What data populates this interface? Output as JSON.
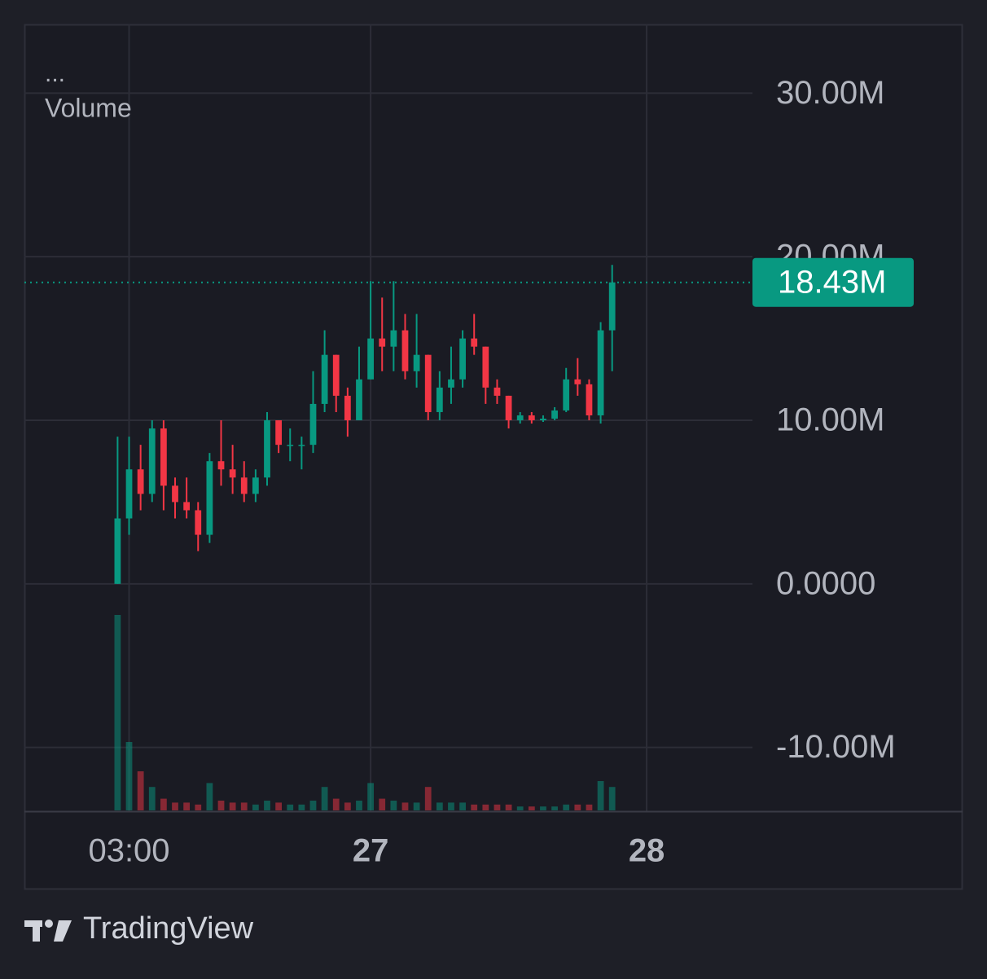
{
  "chart_data": {
    "type": "candlestick",
    "legend_title": "...",
    "volume_label": "Volume",
    "brand": "TradingView",
    "up_color": "#089981",
    "down_color": "#f23645",
    "grid": true,
    "x": [
      2,
      3,
      4,
      5,
      6,
      7,
      8,
      9,
      10,
      11,
      12,
      13,
      14,
      15,
      16,
      17,
      18,
      19,
      20,
      21,
      22,
      23,
      24,
      25,
      26,
      27,
      28,
      29,
      30,
      31,
      32,
      33,
      34,
      35,
      36,
      37,
      38,
      39,
      40,
      41,
      42,
      43,
      44,
      45
    ],
    "open": [
      0,
      4000000,
      7000000,
      5500000,
      9500000,
      6000000,
      5000000,
      4500000,
      3000000,
      7500000,
      7000000,
      6500000,
      5500000,
      6500000,
      10000000,
      8500000,
      8500000,
      8500000,
      11000000,
      14000000,
      11500000,
      10000000,
      12500000,
      15000000,
      14500000,
      15500000,
      13000000,
      14000000,
      10500000,
      12000000,
      12500000,
      15000000,
      14500000,
      12000000,
      11500000,
      10000000,
      10300000,
      10000000,
      10100000,
      10600000,
      12500000,
      12200000,
      10300000,
      15500000
    ],
    "high": [
      9000000,
      9000000,
      8500000,
      10000000,
      10000000,
      6500000,
      6500000,
      5000000,
      8000000,
      10000000,
      8500000,
      7500000,
      7000000,
      10500000,
      10000000,
      9500000,
      9000000,
      13000000,
      15500000,
      14000000,
      12000000,
      14500000,
      18500000,
      17500000,
      18500000,
      16500000,
      16500000,
      14000000,
      13000000,
      14500000,
      15500000,
      16500000,
      14500000,
      12500000,
      11500000,
      10500000,
      10500000,
      10300000,
      10800000,
      13200000,
      13800000,
      12500000,
      16000000,
      19500000
    ],
    "low": [
      0,
      3000000,
      4500000,
      5000000,
      4500000,
      4000000,
      4000000,
      2000000,
      2500000,
      6000000,
      5500000,
      5000000,
      5000000,
      6000000,
      8000000,
      7500000,
      7000000,
      8000000,
      10500000,
      10500000,
      9000000,
      10000000,
      12500000,
      13000000,
      13000000,
      12500000,
      12000000,
      10000000,
      10000000,
      11000000,
      12000000,
      14000000,
      11000000,
      11000000,
      9500000,
      9800000,
      9800000,
      9900000,
      10000000,
      10500000,
      11500000,
      10000000,
      9800000,
      13000000
    ],
    "close": [
      4000000,
      7000000,
      5500000,
      9500000,
      6000000,
      5000000,
      4500000,
      3000000,
      7500000,
      7000000,
      6500000,
      5500000,
      6500000,
      10000000,
      8500000,
      8500000,
      8500000,
      11000000,
      14000000,
      11500000,
      10000000,
      12500000,
      15000000,
      14500000,
      15500000,
      13000000,
      14000000,
      10500000,
      12000000,
      12500000,
      15000000,
      14500000,
      12000000,
      11500000,
      10000000,
      10300000,
      10000000,
      10100000,
      10600000,
      12500000,
      12200000,
      10300000,
      15500000,
      18430000
    ],
    "volume": [
      100,
      35,
      20,
      12,
      6,
      4,
      4,
      3,
      14,
      5,
      4,
      4,
      3,
      5,
      4,
      3,
      3,
      5,
      12,
      6,
      4,
      5,
      14,
      6,
      5,
      4,
      4,
      12,
      4,
      4,
      4,
      3,
      3,
      3,
      3,
      2,
      2,
      2,
      2,
      3,
      3,
      3,
      15,
      12
    ],
    "y2lim": [
      0,
      100
    ],
    "ylim": [
      -13900000,
      34200000
    ],
    "yticks": [
      {
        "value": -10000000,
        "label": "-10.00M"
      },
      {
        "value": 0,
        "label": "0.0000"
      },
      {
        "value": 10000000,
        "label": "10.00M"
      },
      {
        "value": 20000000,
        "label": "20.00M"
      },
      {
        "value": 30000000,
        "label": "30.00M"
      }
    ],
    "xlim": [
      -6.1,
      57.2
    ],
    "xticks": [
      {
        "value": 3,
        "label": "03:00"
      },
      {
        "value": 24,
        "label": "27"
      },
      {
        "value": 48,
        "label": "28"
      }
    ],
    "last_value": 18430000,
    "last_value_label": "18.43M"
  }
}
